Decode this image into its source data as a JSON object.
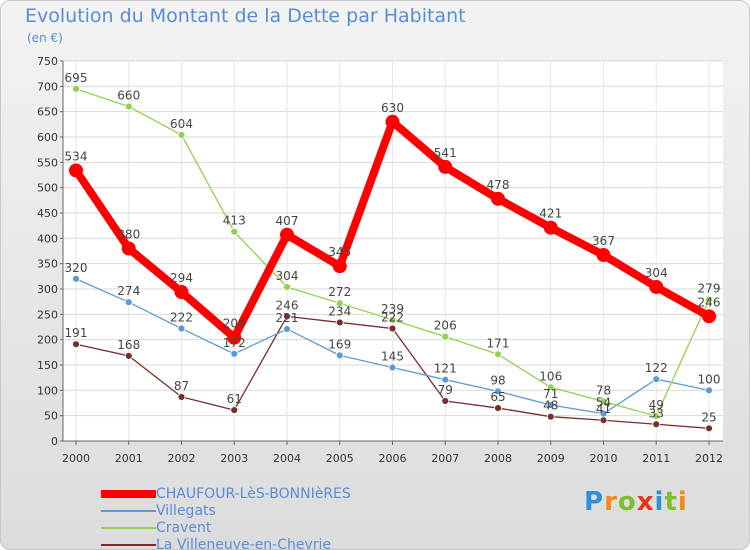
{
  "header": {
    "title": "Evolution du Montant de la Dette par Habitant",
    "subtitle": "(en €)"
  },
  "logo": {
    "text": "Proxiti"
  },
  "chart_data": {
    "type": "line",
    "title": "Evolution du Montant de la Dette par Habitant",
    "subtitle": "(en €)",
    "xlabel": "",
    "ylabel": "",
    "x": [
      "2000",
      "2001",
      "2002",
      "2003",
      "2004",
      "2005",
      "2006",
      "2007",
      "2008",
      "2009",
      "2010",
      "2011",
      "2012"
    ],
    "ylim": [
      0,
      750
    ],
    "yticks": [
      0,
      50,
      100,
      150,
      200,
      250,
      300,
      350,
      400,
      450,
      500,
      550,
      600,
      650,
      700,
      750
    ],
    "grid": true,
    "legend_position": "bottom",
    "series": [
      {
        "name": "CHAUFOUR-LèS-BONNIèRES",
        "color": "#ff0000",
        "values": [
          534,
          380,
          294,
          204,
          407,
          345,
          630,
          541,
          478,
          421,
          367,
          304,
          246
        ]
      },
      {
        "name": "Villegats",
        "color": "#5b9bd5",
        "values": [
          320,
          274,
          222,
          172,
          221,
          169,
          145,
          121,
          98,
          71,
          54,
          122,
          100
        ]
      },
      {
        "name": "Cravent",
        "color": "#92d050",
        "values": [
          695,
          660,
          604,
          413,
          304,
          272,
          239,
          206,
          171,
          106,
          78,
          49,
          279
        ]
      },
      {
        "name": "La Villeneuve-en-Chevrie",
        "color": "#7b2c2c",
        "values": [
          191,
          168,
          87,
          61,
          246,
          234,
          222,
          79,
          65,
          48,
          41,
          33,
          25
        ]
      }
    ]
  }
}
